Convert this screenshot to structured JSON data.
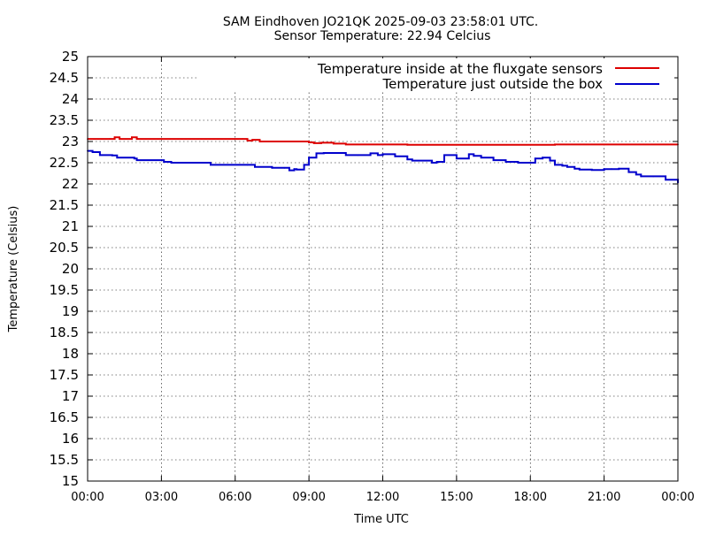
{
  "chart_data": {
    "type": "line",
    "title": "SAM Eindhoven JO21QK 2025-09-03 23:58:01 UTC.",
    "subtitle": "Sensor Temperature: 22.94 Celcius",
    "xlabel": "Time UTC",
    "ylabel": "Temperature (Celsius)",
    "xlim": [
      0,
      24
    ],
    "ylim": [
      15,
      25
    ],
    "grid": true,
    "legend_position": "top-right",
    "xticks": [
      {
        "value": 0,
        "label": "00:00"
      },
      {
        "value": 3,
        "label": "03:00"
      },
      {
        "value": 6,
        "label": "06:00"
      },
      {
        "value": 9,
        "label": "09:00"
      },
      {
        "value": 12,
        "label": "12:00"
      },
      {
        "value": 15,
        "label": "15:00"
      },
      {
        "value": 18,
        "label": "18:00"
      },
      {
        "value": 21,
        "label": "21:00"
      },
      {
        "value": 24,
        "label": "00:00"
      }
    ],
    "yticks": [
      {
        "value": 15,
        "label": "15"
      },
      {
        "value": 15.5,
        "label": "15.5"
      },
      {
        "value": 16,
        "label": "16"
      },
      {
        "value": 16.5,
        "label": "16.5"
      },
      {
        "value": 17,
        "label": "17"
      },
      {
        "value": 17.5,
        "label": "17.5"
      },
      {
        "value": 18,
        "label": "18"
      },
      {
        "value": 18.5,
        "label": "18.5"
      },
      {
        "value": 19,
        "label": "19"
      },
      {
        "value": 19.5,
        "label": "19.5"
      },
      {
        "value": 20,
        "label": "20"
      },
      {
        "value": 20.5,
        "label": "20.5"
      },
      {
        "value": 21,
        "label": "21"
      },
      {
        "value": 21.5,
        "label": "21.5"
      },
      {
        "value": 22,
        "label": "22"
      },
      {
        "value": 22.5,
        "label": "22.5"
      },
      {
        "value": 23,
        "label": "23"
      },
      {
        "value": 23.5,
        "label": "23.5"
      },
      {
        "value": 24,
        "label": "24"
      },
      {
        "value": 24.5,
        "label": "24.5"
      },
      {
        "value": 25,
        "label": "25"
      }
    ],
    "series": [
      {
        "name": "Temperature inside at the fluxgate sensors",
        "color": "#dd0000",
        "x": [
          0,
          0.9,
          1.1,
          1.3,
          1.8,
          2.0,
          6.3,
          6.5,
          6.7,
          7.0,
          8.5,
          9.0,
          9.2,
          9.5,
          10.0,
          10.5,
          12.0,
          13.0,
          15.0,
          18.0,
          19.0,
          21.0,
          24.0
        ],
        "y": [
          23.06,
          23.06,
          23.1,
          23.06,
          23.1,
          23.06,
          23.06,
          23.02,
          23.04,
          23.0,
          23.0,
          22.98,
          22.96,
          22.97,
          22.95,
          22.93,
          22.93,
          22.92,
          22.92,
          22.92,
          22.93,
          22.93,
          22.93
        ]
      },
      {
        "name": "Temperature just outside the box",
        "color": "#0000cc",
        "x": [
          0,
          0.2,
          0.5,
          1.0,
          1.2,
          1.9,
          2.0,
          3.0,
          3.1,
          3.4,
          4.0,
          4.8,
          5.0,
          6.5,
          6.8,
          7.5,
          8.0,
          8.2,
          8.4,
          8.5,
          8.8,
          9.0,
          9.3,
          9.6,
          10.0,
          10.5,
          11.0,
          11.5,
          11.8,
          12.0,
          12.5,
          13.0,
          13.2,
          14.0,
          14.2,
          14.5,
          15.0,
          15.5,
          15.7,
          16.0,
          16.5,
          17.0,
          17.5,
          18.0,
          18.2,
          18.5,
          18.8,
          19.0,
          19.3,
          19.5,
          19.8,
          20.0,
          20.5,
          21.0,
          21.3,
          21.6,
          22.0,
          22.3,
          22.5,
          23.0,
          23.5,
          24.0
        ],
        "y": [
          22.78,
          22.75,
          22.68,
          22.67,
          22.62,
          22.6,
          22.56,
          22.56,
          22.52,
          22.5,
          22.5,
          22.5,
          22.45,
          22.45,
          22.4,
          22.38,
          22.38,
          22.32,
          22.35,
          22.34,
          22.45,
          22.62,
          22.72,
          22.73,
          22.73,
          22.68,
          22.68,
          22.72,
          22.68,
          22.7,
          22.65,
          22.58,
          22.55,
          22.5,
          22.52,
          22.68,
          22.6,
          22.7,
          22.66,
          22.62,
          22.56,
          22.52,
          22.5,
          22.5,
          22.6,
          22.62,
          22.55,
          22.45,
          22.43,
          22.4,
          22.36,
          22.34,
          22.33,
          22.35,
          22.35,
          22.36,
          22.28,
          22.22,
          22.18,
          22.18,
          22.1,
          22.03
        ]
      }
    ]
  }
}
